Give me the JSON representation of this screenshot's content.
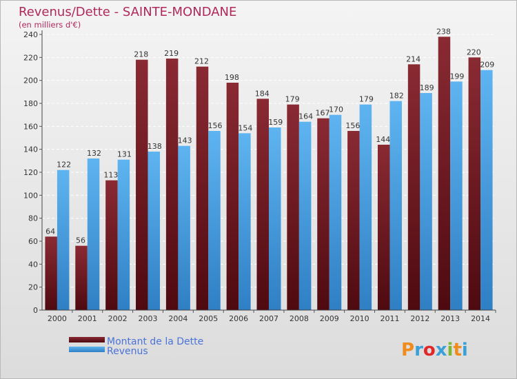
{
  "chart_data": {
    "type": "bar",
    "title": "Revenus/Dette - SAINTE-MONDANE",
    "subtitle": "(en milliers d'€)",
    "xlabel": "",
    "ylabel": "",
    "ylim": [
      0,
      240
    ],
    "yticks": [
      0,
      20,
      40,
      60,
      80,
      100,
      120,
      140,
      160,
      180,
      200,
      220,
      240
    ],
    "grid": true,
    "legend_position": "bottom-left",
    "categories": [
      "2000",
      "2001",
      "2002",
      "2003",
      "2004",
      "2005",
      "2006",
      "2007",
      "2008",
      "2009",
      "2010",
      "2011",
      "2012",
      "2013",
      "2014"
    ],
    "series": [
      {
        "name": "Montant de la Dette",
        "color": "#7a1f2a",
        "values": [
          64,
          56,
          113,
          218,
          219,
          212,
          198,
          184,
          179,
          167,
          156,
          144,
          214,
          238,
          220
        ]
      },
      {
        "name": "Revenus",
        "color": "#4aa3e6",
        "values": [
          122,
          132,
          131,
          138,
          143,
          156,
          154,
          159,
          164,
          170,
          179,
          182,
          189,
          199,
          209
        ]
      }
    ]
  },
  "logo": {
    "text": "Proxiti",
    "colors": [
      "#f08c1e",
      "#3aa0d8",
      "#e0282c",
      "#3aa0d8",
      "#7cb82f",
      "#f08c1e",
      "#3aa0d8"
    ]
  }
}
